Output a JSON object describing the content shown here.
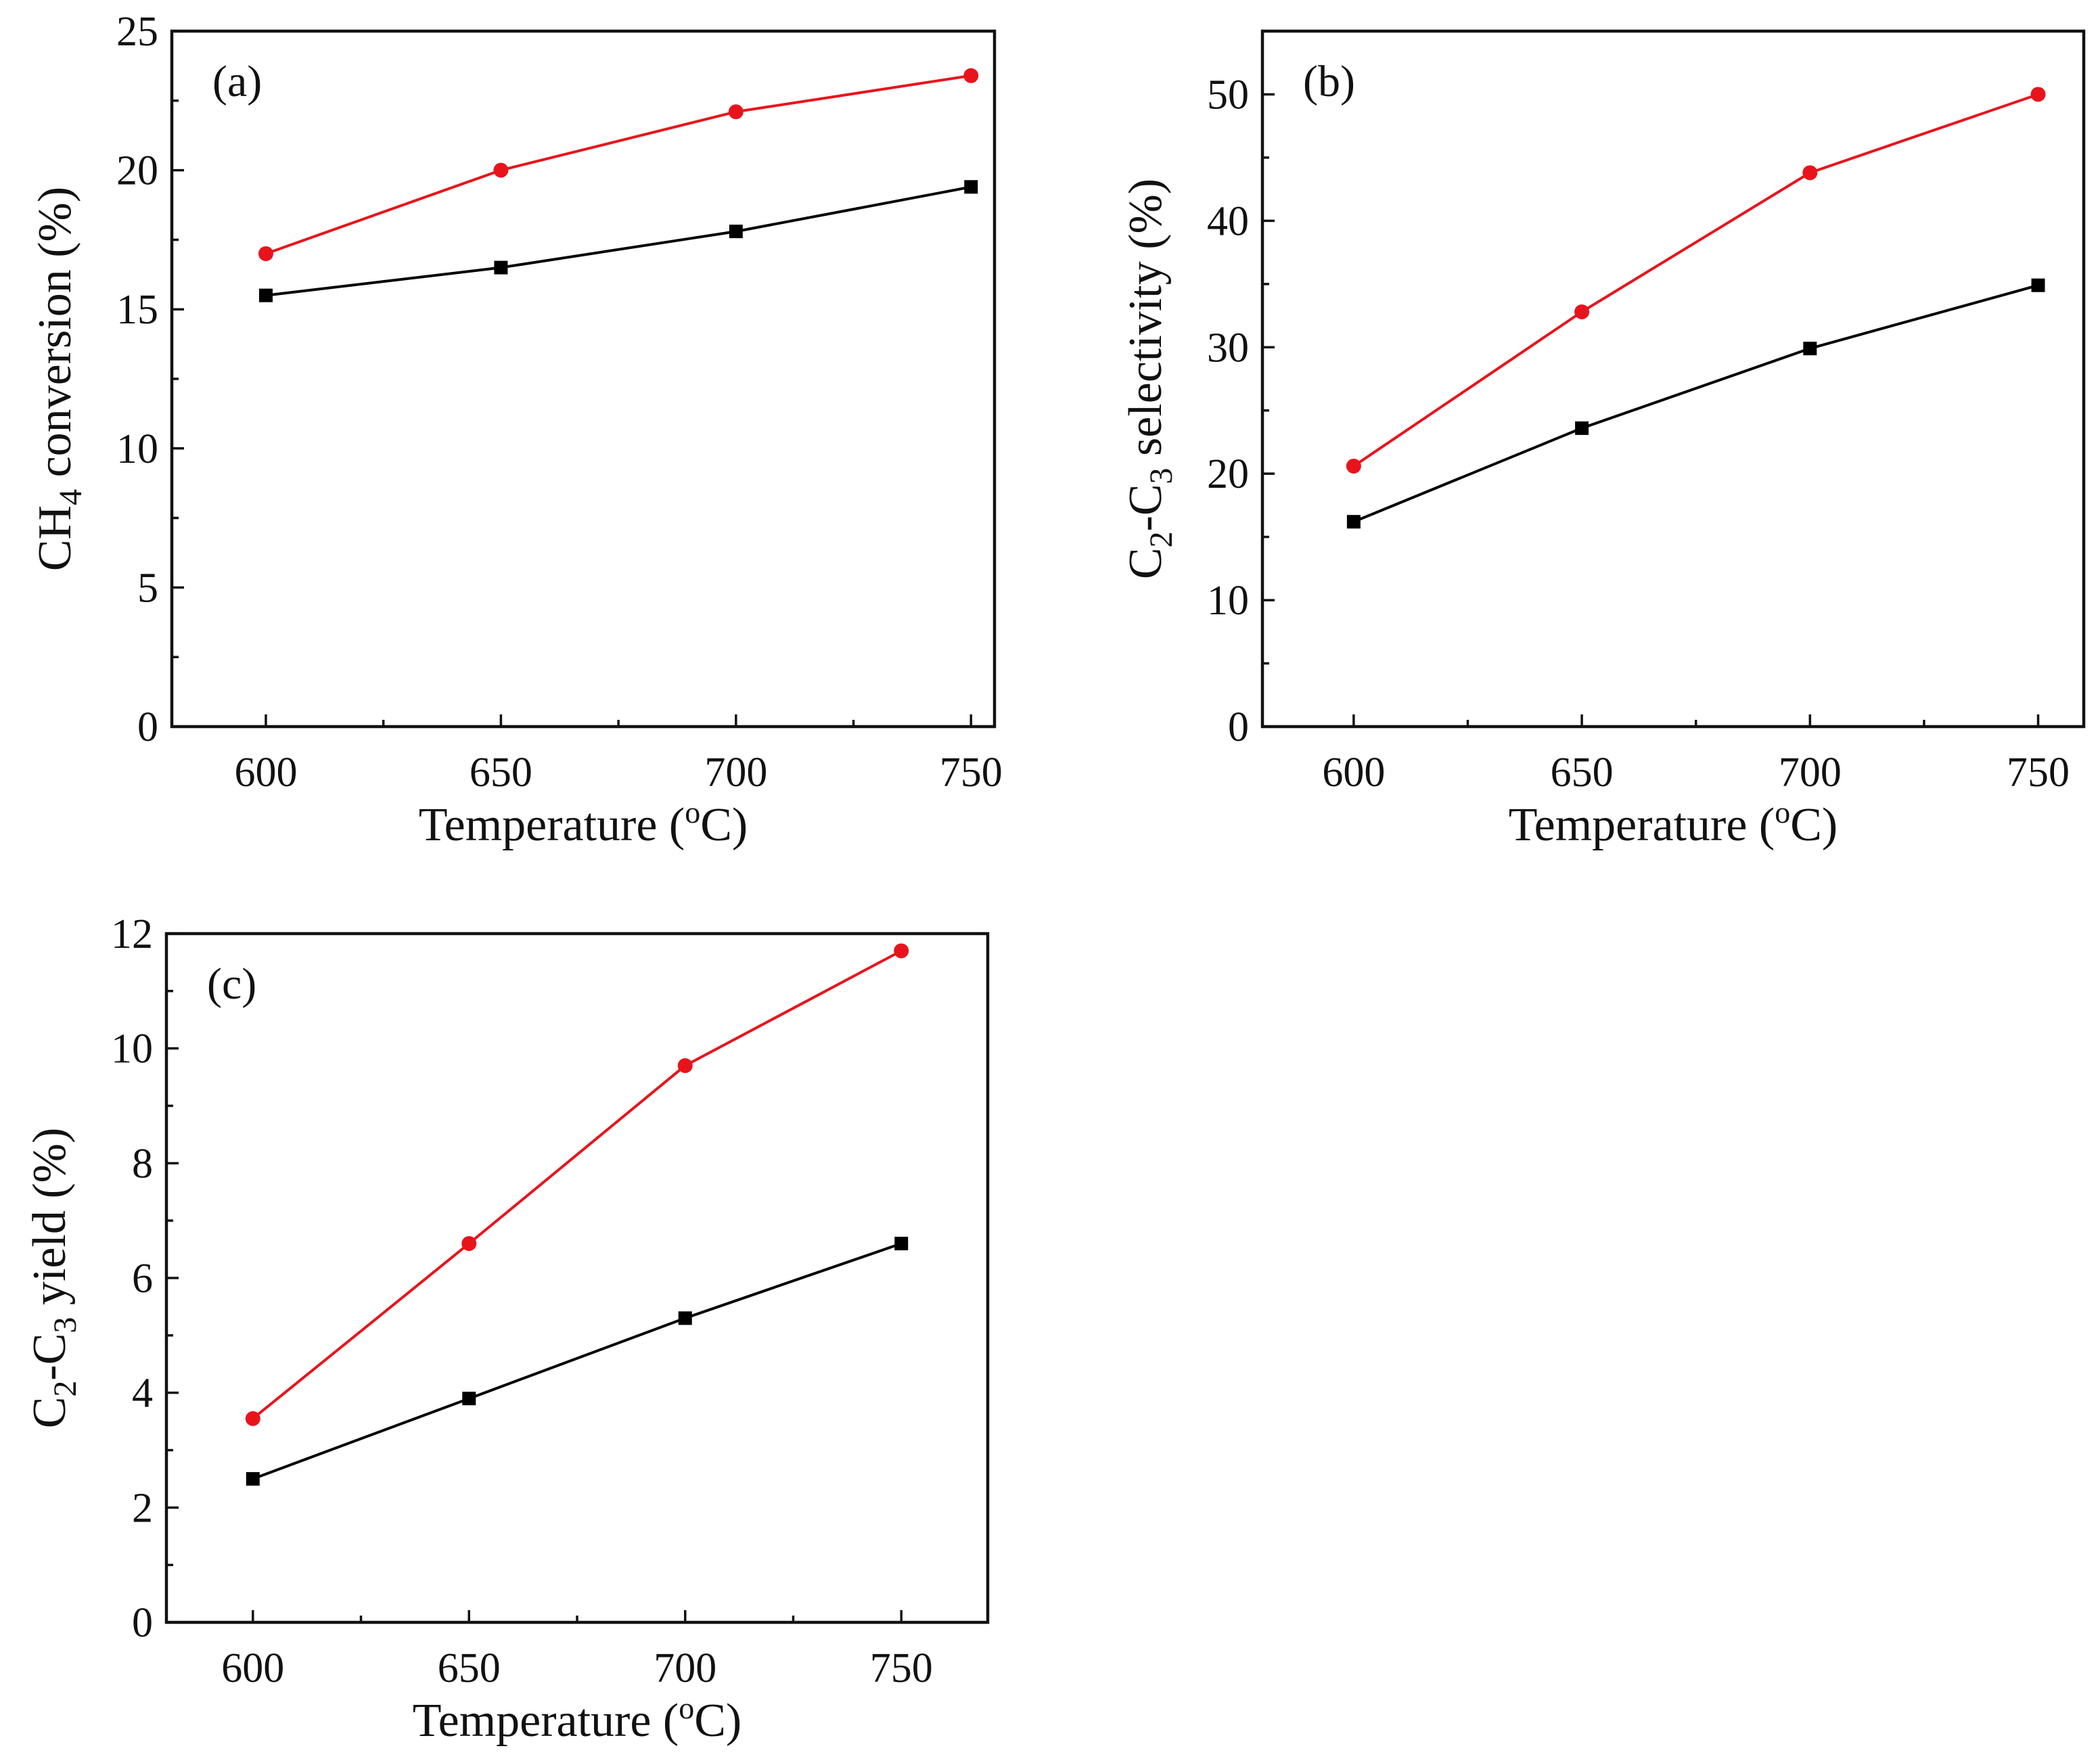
{
  "chart_data": [
    {
      "panel": "(a)",
      "type": "line",
      "xlabel": "Temperature (oC)",
      "ylabel": "CH4 conversion (%)",
      "ylabel_parts": {
        "pre": "CH",
        "sub": "4",
        "post": " conversion (%)"
      },
      "xlabel_parts": {
        "pre": "Temperature (",
        "sup": "o",
        "post": "C)"
      },
      "x": [
        600,
        650,
        700,
        750
      ],
      "xlim": [
        580,
        755
      ],
      "xticks": [
        600,
        650,
        700,
        750
      ],
      "ylim": [
        0,
        25
      ],
      "yticks": [
        0,
        5,
        10,
        15,
        20,
        25
      ],
      "grid": false,
      "series": [
        {
          "name": "red-circles",
          "color": "#e8141c",
          "marker": "circle",
          "values": [
            17.0,
            20.0,
            22.1,
            23.4
          ]
        },
        {
          "name": "black-squares",
          "color": "#000000",
          "marker": "square",
          "values": [
            15.5,
            16.5,
            17.8,
            19.4
          ]
        }
      ]
    },
    {
      "panel": "(b)",
      "type": "line",
      "xlabel": "Temperature (oC)",
      "ylabel": "C2-C3 selectivity (%)",
      "ylabel_parts": {
        "pre": "C",
        "sub1": "2",
        "mid": "-C",
        "sub2": "3",
        "post": " selectivity (%)"
      },
      "xlabel_parts": {
        "pre": "Temperature (",
        "sup": "o",
        "post": "C)"
      },
      "x": [
        600,
        650,
        700,
        750
      ],
      "xlim": [
        580,
        760
      ],
      "xticks": [
        600,
        650,
        700,
        750
      ],
      "ylim": [
        0,
        55
      ],
      "yticks": [
        0,
        10,
        20,
        30,
        40,
        50
      ],
      "grid": false,
      "series": [
        {
          "name": "red-circles",
          "color": "#e8141c",
          "marker": "circle",
          "values": [
            20.6,
            32.8,
            43.8,
            50.0
          ]
        },
        {
          "name": "black-squares",
          "color": "#000000",
          "marker": "square",
          "values": [
            16.2,
            23.6,
            29.9,
            34.9
          ]
        }
      ]
    },
    {
      "panel": "(c)",
      "type": "line",
      "xlabel": "Temperature (oC)",
      "ylabel": "C2-C3 yield (%)",
      "ylabel_parts": {
        "pre": "C",
        "sub1": "2",
        "mid": "-C",
        "sub2": "3",
        "post": " yield (%)"
      },
      "xlabel_parts": {
        "pre": "Temperature (",
        "sup": "o",
        "post": "C)"
      },
      "x": [
        600,
        650,
        700,
        750
      ],
      "xlim": [
        580,
        770
      ],
      "xticks": [
        600,
        650,
        700,
        750
      ],
      "ylim": [
        0,
        12
      ],
      "yticks": [
        0,
        2,
        4,
        6,
        8,
        10,
        12
      ],
      "grid": false,
      "series": [
        {
          "name": "red-circles",
          "color": "#e8141c",
          "marker": "circle",
          "values": [
            3.55,
            6.6,
            9.7,
            11.7
          ]
        },
        {
          "name": "black-squares",
          "color": "#000000",
          "marker": "square",
          "values": [
            2.5,
            3.9,
            5.3,
            6.6
          ]
        }
      ]
    }
  ]
}
